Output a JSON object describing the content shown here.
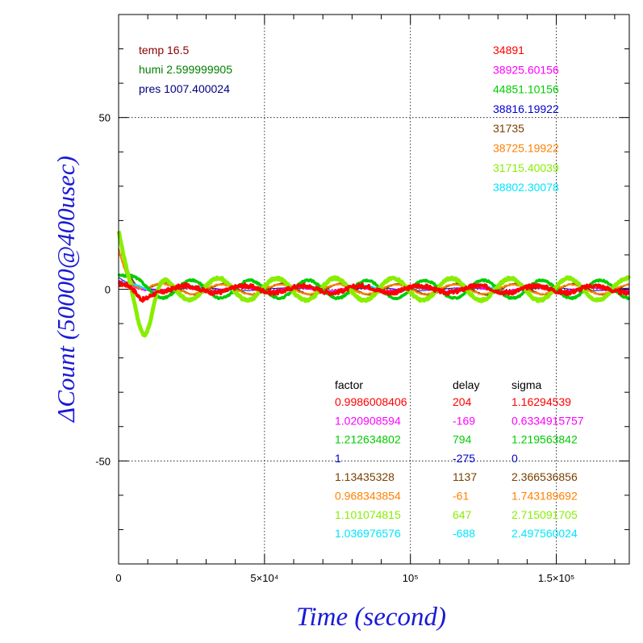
{
  "chart_data": {
    "type": "line",
    "xlabel": "Time (second)",
    "ylabel": "ΔCount (50000@400usec)",
    "xlim": [
      0,
      175000
    ],
    "ylim": [
      -80,
      80
    ],
    "grid": true,
    "x_ticks": [
      {
        "value": 0,
        "label": "0"
      },
      {
        "value": 50000,
        "label": "5×10⁴"
      },
      {
        "value": 100000,
        "label": "10⁵"
      },
      {
        "value": 150000,
        "label": "1.5×10⁵"
      }
    ],
    "y_ticks": [
      {
        "value": -50,
        "label": "-50"
      },
      {
        "value": 0,
        "label": "0"
      },
      {
        "value": 50,
        "label": "50"
      }
    ],
    "environment": [
      {
        "text": "temp 16.5",
        "color": "#8b0000"
      },
      {
        "text": "humi 2.599999905",
        "color": "#008000"
      },
      {
        "text": "pres 1007.400024",
        "color": "#00007f"
      }
    ],
    "stats_headers": [
      "factor",
      "delay",
      "sigma"
    ],
    "series": [
      {
        "count": "34891",
        "factor": "0.9986008406",
        "delay": "204",
        "sigma": "1.16294539",
        "color": "#ff0000",
        "amplitude": 1.0,
        "period": 20000,
        "phase": 0.6,
        "noise": 1.2,
        "width": 3.5,
        "start": 1,
        "decay": 3000
      },
      {
        "count": "38925.60156",
        "factor": "1.020908594",
        "delay": "-169",
        "sigma": "0.6334915757",
        "color": "#ff00ff",
        "amplitude": 0.6,
        "period": 20000,
        "phase": 1.0,
        "noise": 0.3,
        "width": 2.5,
        "start": 2,
        "decay": 4000
      },
      {
        "count": "44851.10156",
        "factor": "1.212634802",
        "delay": "794",
        "sigma": "1.219563842",
        "color": "#00cc00",
        "amplitude": 2.6,
        "period": 20000,
        "phase": 0.0,
        "noise": 0.5,
        "width": 3.5,
        "start": 4,
        "decay": 4000
      },
      {
        "count": "38816.19922",
        "factor": "1",
        "delay": "-275",
        "sigma": "0",
        "color": "#0000cc",
        "amplitude": 0.4,
        "period": 30000,
        "phase": 2.0,
        "noise": 0.1,
        "width": 1.0,
        "start": 3,
        "decay": 6000
      },
      {
        "count": "31735",
        "factor": "1.13435328",
        "delay": "1137",
        "sigma": "2.366536856",
        "color": "#7a4000",
        "amplitude": 1.6,
        "period": 20000,
        "phase": 2.8,
        "noise": 0.2,
        "width": 2.0,
        "start": 16,
        "decay": 3500
      },
      {
        "count": "38725.19922",
        "factor": "0.968343854",
        "delay": "-61",
        "sigma": "1.743189692",
        "color": "#ff8000",
        "amplitude": 1.4,
        "period": 20000,
        "phase": 3.1,
        "noise": 0.4,
        "width": 2.0,
        "start": 12,
        "decay": 3500
      },
      {
        "count": "31715.40039",
        "factor": "1.101074815",
        "delay": "647",
        "sigma": "2.715091705",
        "color": "#88ee00",
        "amplitude": 3.2,
        "period": 20000,
        "phase": 3.4,
        "noise": 0.6,
        "width": 5.0,
        "start": 18,
        "decay": 5000
      },
      {
        "count": "38802.30078",
        "factor": "1.036976576",
        "delay": "-688",
        "sigma": "2.497560024",
        "color": "#00e5ff",
        "amplitude": 1.0,
        "period": 20000,
        "phase": 0.3,
        "noise": 0.3,
        "width": 2.0,
        "start": 2,
        "decay": 4000
      }
    ]
  }
}
